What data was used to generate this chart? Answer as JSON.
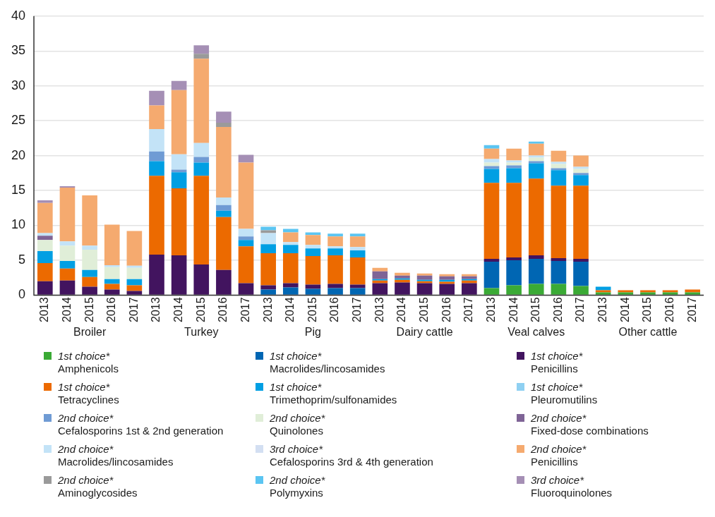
{
  "chart_data": {
    "type": "bar",
    "stacked": true,
    "grid": "y",
    "legend": "bottom",
    "categories": [
      "2013",
      "2014",
      "2015",
      "2016",
      "2017",
      "2013",
      "2014",
      "2015",
      "2016",
      "2017",
      "2013",
      "2014",
      "2015",
      "2016",
      "2017",
      "2013",
      "2014",
      "2015",
      "2016",
      "2017",
      "2013",
      "2014",
      "2015",
      "2016",
      "2017",
      "2013",
      "2014",
      "2015",
      "2016",
      "2017"
    ],
    "annotations": [
      "Broiler",
      "Turkey",
      "Pig",
      "Dairy cattle",
      "Veal calves",
      "Other cattle"
    ],
    "ylim": [
      0,
      40
    ],
    "yticks": [
      0,
      5,
      10,
      15,
      20,
      25,
      30,
      35,
      40
    ],
    "series": [
      {
        "name": "1st choice*\nAmphenicols",
        "color": "#3aaa35",
        "values": [
          null,
          null,
          null,
          null,
          null,
          null,
          null,
          null,
          null,
          null,
          null,
          null,
          null,
          null,
          null,
          null,
          null,
          null,
          null,
          null,
          1.0,
          1.4,
          1.6,
          1.6,
          1.3,
          0.4,
          0.4,
          0.4,
          0.4,
          0.4
        ]
      },
      {
        "name": "1st choice*\nMacrolides/lincosamides",
        "color": "#0066b3",
        "values": [
          null,
          null,
          null,
          null,
          null,
          null,
          null,
          null,
          null,
          null,
          0.8,
          1.1,
          0.9,
          1.0,
          1.0,
          null,
          null,
          null,
          null,
          null,
          3.8,
          3.6,
          3.6,
          3.3,
          3.5,
          null,
          null,
          null,
          null,
          null
        ]
      },
      {
        "name": "1st choice*\nPenicillins",
        "color": "#42145f",
        "values": [
          2.0,
          2.1,
          1.2,
          0.8,
          0.6,
          5.8,
          5.7,
          4.4,
          3.6,
          1.7,
          0.6,
          0.6,
          0.6,
          0.6,
          0.5,
          1.7,
          1.8,
          1.7,
          1.6,
          1.7,
          0.4,
          0.4,
          0.5,
          0.4,
          0.4,
          null,
          null,
          null,
          null,
          null
        ]
      },
      {
        "name": "1st choice*\nTetracyclines",
        "color": "#ec6a00",
        "values": [
          2.6,
          1.7,
          1.4,
          0.8,
          0.8,
          11.3,
          9.6,
          12.7,
          7.6,
          5.3,
          4.6,
          4.3,
          4.1,
          4.1,
          3.9,
          0.4,
          0.4,
          0.3,
          0.3,
          0.4,
          10.9,
          10.7,
          11.0,
          10.4,
          10.5,
          0.3,
          0.3,
          0.3,
          0.3,
          0.4
        ]
      },
      {
        "name": "1st choice*\nTrimethoprim/sulfonamides",
        "color": "#009fe3",
        "values": [
          1.7,
          1.1,
          1.0,
          0.7,
          0.9,
          2.1,
          2.3,
          1.9,
          0.9,
          0.9,
          1.3,
          1.2,
          1.1,
          1.0,
          1.0,
          0.2,
          0.2,
          0.2,
          0.3,
          0.2,
          2.0,
          2.1,
          2.2,
          2.2,
          1.5,
          0.5,
          null,
          null,
          null,
          null
        ]
      },
      {
        "name": "1st choice*\nPleuromutilins",
        "color": "#8fd0f2",
        "values": [
          null,
          null,
          null,
          null,
          null,
          null,
          null,
          null,
          null,
          null,
          null,
          null,
          null,
          null,
          null,
          null,
          null,
          null,
          null,
          null,
          null,
          null,
          null,
          null,
          null,
          null,
          null,
          null,
          null,
          null
        ]
      },
      {
        "name": "2nd choice*\nCefalosporins 1st & 2nd generation",
        "color": "#6f9bd4",
        "values": [
          null,
          null,
          null,
          null,
          null,
          1.4,
          0.4,
          0.8,
          0.8,
          0.5,
          null,
          null,
          null,
          null,
          null,
          null,
          null,
          null,
          null,
          null,
          0.4,
          0.4,
          0.3,
          0.3,
          0.3,
          null,
          null,
          null,
          null,
          null
        ]
      },
      {
        "name": "2nd choice*\nQuinolones",
        "color": "#e0eed8",
        "values": [
          1.6,
          2.2,
          2.9,
          1.7,
          1.6,
          null,
          null,
          null,
          null,
          null,
          null,
          null,
          null,
          null,
          null,
          null,
          null,
          null,
          null,
          null,
          0.5,
          0.4,
          0.5,
          0.6,
          0.6,
          null,
          null,
          null,
          null,
          null
        ]
      },
      {
        "name": "2nd choice*\nFixed-dose combinations",
        "color": "#7f6496",
        "values": [
          0.6,
          null,
          null,
          null,
          null,
          null,
          null,
          null,
          null,
          null,
          null,
          null,
          null,
          null,
          null,
          1.1,
          0.4,
          0.6,
          0.5,
          0.4,
          null,
          null,
          null,
          null,
          null,
          null,
          null,
          null,
          null,
          null
        ]
      },
      {
        "name": "2nd choice*\nMacrolides/lincosamides",
        "color": "#c3e3f7",
        "values": [
          0.4,
          0.6,
          0.6,
          0.3,
          0.3,
          3.2,
          2.2,
          2.0,
          1.1,
          1.1,
          1.6,
          0.4,
          0.5,
          0.3,
          0.5,
          null,
          null,
          null,
          null,
          null,
          0.5,
          0.3,
          0.3,
          0.3,
          0.3,
          null,
          null,
          null,
          null,
          null
        ]
      },
      {
        "name": "3rd choice*\nCefalosporins 3rd & 4th generation",
        "color": "#d3dff2",
        "values": [
          null,
          null,
          null,
          null,
          null,
          null,
          null,
          null,
          null,
          null,
          null,
          null,
          null,
          null,
          null,
          null,
          null,
          null,
          null,
          null,
          null,
          null,
          null,
          null,
          null,
          null,
          null,
          null,
          null,
          null
        ]
      },
      {
        "name": "2nd choice*\nPenicillins",
        "color": "#f5aa6f",
        "values": [
          4.3,
          7.7,
          7.2,
          5.8,
          5.0,
          3.4,
          9.2,
          12.1,
          10.1,
          9.5,
          null,
          1.4,
          1.4,
          1.4,
          1.5,
          0.5,
          0.4,
          0.3,
          0.3,
          0.3,
          1.5,
          1.7,
          1.7,
          1.6,
          1.6,
          null,
          null,
          null,
          null,
          null
        ]
      },
      {
        "name": "2nd choice*\nAminoglycosides",
        "color": "#9a9a9a",
        "values": [
          null,
          null,
          null,
          null,
          null,
          null,
          null,
          0.7,
          0.6,
          null,
          0.4,
          null,
          null,
          null,
          null,
          null,
          null,
          null,
          null,
          null,
          null,
          null,
          null,
          null,
          null,
          null,
          null,
          null,
          null,
          null
        ]
      },
      {
        "name": "2nd choice*\nPolymyxins",
        "color": "#5bc5f2",
        "values": [
          null,
          null,
          null,
          null,
          null,
          null,
          null,
          null,
          null,
          null,
          0.5,
          0.5,
          0.4,
          0.4,
          0.4,
          null,
          null,
          null,
          null,
          null,
          0.5,
          null,
          0.3,
          null,
          null,
          null,
          null,
          null,
          null,
          null
        ]
      },
      {
        "name": "3rd choice*\nFluoroquinolones",
        "color": "#a58fb5",
        "values": [
          0.4,
          0.2,
          null,
          null,
          null,
          2.1,
          1.3,
          1.2,
          1.6,
          1.1,
          null,
          null,
          null,
          null,
          null,
          null,
          null,
          null,
          null,
          null,
          null,
          null,
          null,
          null,
          null,
          null,
          null,
          null,
          null,
          null
        ]
      }
    ]
  }
}
